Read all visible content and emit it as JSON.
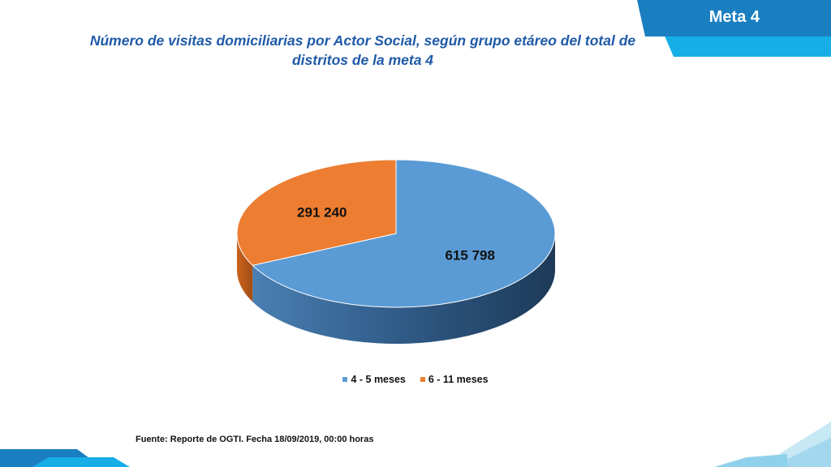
{
  "header": {
    "badge": "Meta 4"
  },
  "footer": {
    "source": "Fuente: Reporte de OGTI. Fecha 18/09/2019, 00:00 horas"
  },
  "colors": {
    "accent_dark": "#1a7fc1",
    "accent_light": "#17aee8",
    "slice_1": "#5b9bd5",
    "slice_2": "#ed7d31",
    "title": "#1f5aa8"
  },
  "chart_data": {
    "type": "pie",
    "style": "3d",
    "title": "Número de visitas domiciliarias por Actor Social, según grupo etáreo del total de distritos de la meta 4",
    "categories": [
      "4 - 5 meses",
      "6 - 11 meses"
    ],
    "values": [
      615798,
      291240
    ],
    "data_labels": [
      "615 798",
      "291 240"
    ],
    "legend_position": "bottom"
  }
}
